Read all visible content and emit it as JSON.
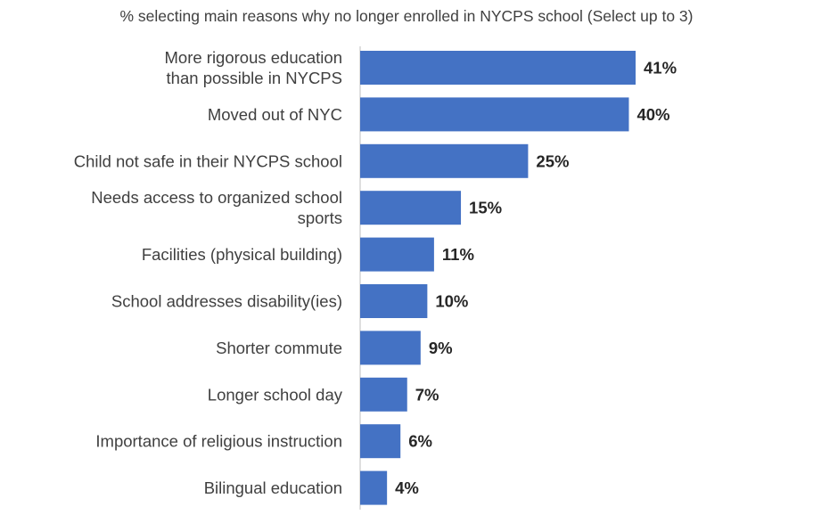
{
  "chart_data": {
    "type": "bar",
    "orientation": "horizontal",
    "title": "% selecting main reasons why no longer enrolled in NYCPS school (Select up to 3)",
    "categories": [
      [
        "More rigorous education",
        "than possible in NYCPS"
      ],
      [
        "Moved out of NYC"
      ],
      [
        "Child not safe in their NYCPS school"
      ],
      [
        "Needs access to organized school",
        "sports"
      ],
      [
        "Facilities (physical building)"
      ],
      [
        "School addresses disability(ies)"
      ],
      [
        "Shorter commute"
      ],
      [
        "Longer school day"
      ],
      [
        "Importance of religious instruction"
      ],
      [
        "Bilingual education"
      ]
    ],
    "values": [
      41,
      40,
      25,
      15,
      11,
      10,
      9,
      7,
      6,
      4
    ],
    "value_labels": [
      "41%",
      "40%",
      "25%",
      "15%",
      "11%",
      "10%",
      "9%",
      "7%",
      "6%",
      "4%"
    ],
    "xlim": [
      0,
      41
    ],
    "bar_color": "#4472C4",
    "grid": false,
    "legend": "none"
  }
}
